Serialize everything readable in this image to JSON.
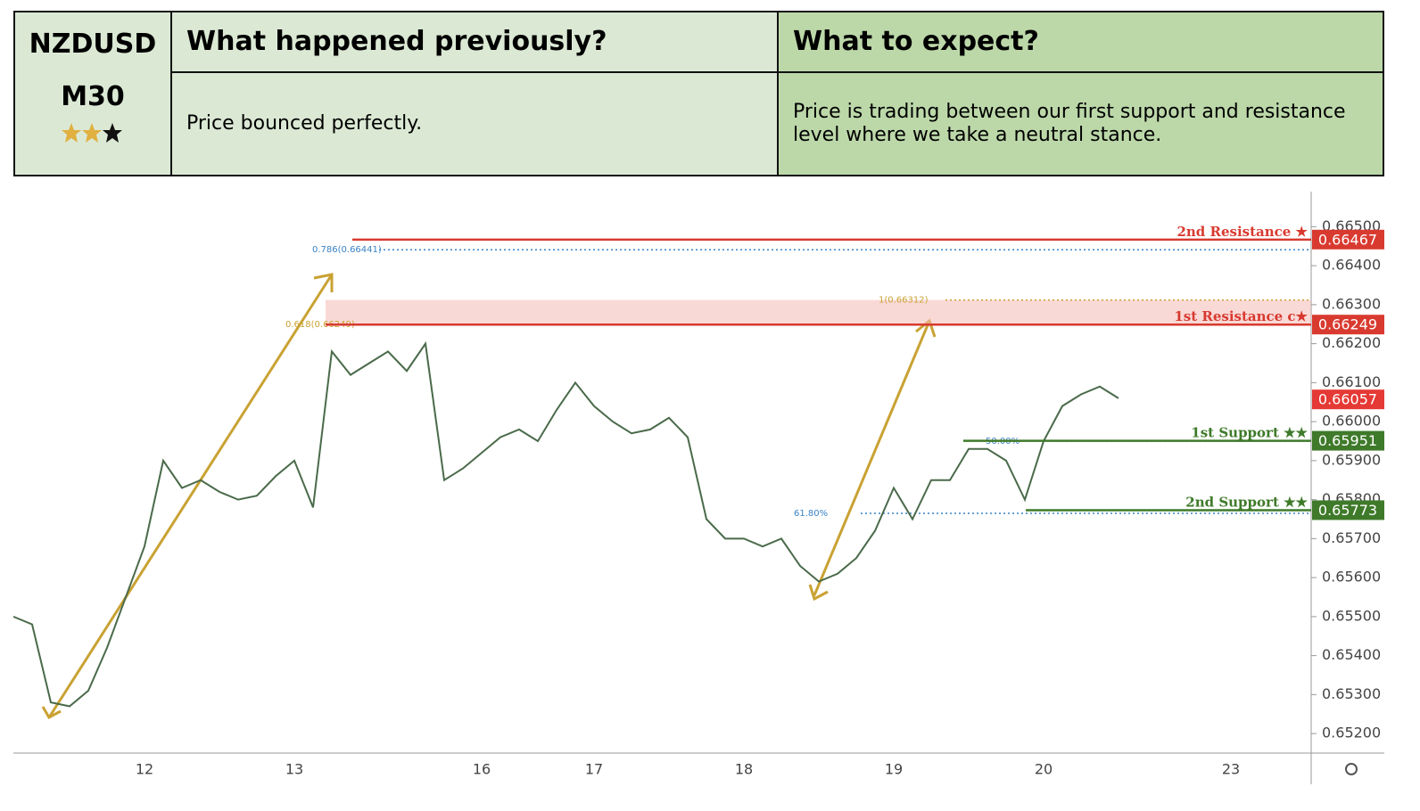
{
  "header": {
    "pair": "NZDUSD",
    "timeframe": "M30",
    "previous_title": "What happened previously?",
    "previous_text": "Price bounced perfectly.",
    "expect_title": "What to expect?",
    "expect_text": "Price is trading between our first support and resistance level where we take a neutral stance."
  },
  "chart_data": {
    "type": "line",
    "color": "#4a6a4a",
    "categories": [
      null,
      null,
      null,
      null,
      null,
      null,
      null,
      "12",
      null,
      null,
      null,
      null,
      null,
      null,
      null,
      "13",
      null,
      null,
      null,
      null,
      null,
      null,
      null,
      null,
      null,
      "16",
      null,
      null,
      null,
      null,
      null,
      "17",
      null,
      null,
      null,
      null,
      null,
      null,
      null,
      "18",
      null,
      null,
      null,
      null,
      null,
      null,
      null,
      "19",
      null,
      null,
      null,
      null,
      null,
      null,
      null,
      "20",
      null,
      null,
      null,
      null,
      null,
      null,
      null,
      null,
      null,
      "23",
      null,
      null,
      null,
      null
    ],
    "values": [
      0.655,
      0.6548,
      0.6528,
      0.6527,
      0.6531,
      0.6542,
      0.6555,
      0.6568,
      0.659,
      0.6583,
      0.6585,
      0.6582,
      0.658,
      0.6581,
      0.6586,
      0.659,
      0.6578,
      0.6618,
      0.6612,
      0.6615,
      0.6618,
      0.6613,
      0.662,
      0.6585,
      0.6588,
      0.6592,
      0.6596,
      0.6598,
      0.6595,
      0.6603,
      0.661,
      0.6604,
      0.66,
      0.6597,
      0.6598,
      0.6601,
      0.6596,
      0.6575,
      0.657,
      0.657,
      0.6568,
      0.657,
      0.6563,
      0.6559,
      0.6561,
      0.6565,
      0.6572,
      0.6583,
      0.6575,
      0.6585,
      0.6585,
      0.6593,
      0.6593,
      0.659,
      0.658,
      0.6595,
      0.6604,
      0.6607,
      0.6609,
      0.6606,
      null,
      null,
      null,
      null,
      null,
      null,
      null,
      null,
      null,
      null
    ],
    "ylim": [
      0.6515,
      0.6659
    ],
    "yticks": [
      {
        "value": 0.652,
        "label": "0.65200"
      },
      {
        "value": 0.653,
        "label": "0.65300"
      },
      {
        "value": 0.654,
        "label": "0.65400"
      },
      {
        "value": 0.655,
        "label": "0.65500"
      },
      {
        "value": 0.656,
        "label": "0.65600"
      },
      {
        "value": 0.657,
        "label": "0.65700"
      },
      {
        "value": 0.658,
        "label": "0.65800"
      },
      {
        "value": 0.659,
        "label": "0.65900"
      },
      {
        "value": 0.66,
        "label": "0.66000"
      },
      {
        "value": 0.661,
        "label": "0.66100"
      },
      {
        "value": 0.662,
        "label": "0.66200"
      },
      {
        "value": 0.663,
        "label": "0.66300"
      },
      {
        "value": 0.664,
        "label": "0.66400"
      },
      {
        "value": 0.665,
        "label": "0.66500"
      }
    ],
    "resistance_zone": [
      0.66249,
      0.66312
    ],
    "levels": [
      {
        "label": "2nd Resistance ★",
        "value": 0.66467,
        "color": "#d93a30"
      },
      {
        "label": "1st Resistance c★",
        "value": 0.66249,
        "color": "#d93a30"
      },
      {
        "label": "1st Support ★★",
        "value": 0.65951,
        "color": "#3f7a2a"
      },
      {
        "label": "2nd Support ★★",
        "value": 0.65773,
        "color": "#3f7a2a"
      }
    ],
    "last_price": 0.66057,
    "fib_levels": [
      {
        "label": "0.786(0.66441)",
        "value": 0.66441,
        "color": "#3a82c4"
      },
      {
        "label": "1(0.66312)",
        "value": 0.66312,
        "color": "#c9a233"
      },
      {
        "label": "0.618(0.66249)",
        "value": 0.66249,
        "color": "#c9a233"
      },
      {
        "label": "50.00%",
        "value": 0.6595,
        "color": "#3a82c4"
      },
      {
        "label": "61.80%",
        "value": 0.65765,
        "color": "#3a82c4"
      }
    ]
  }
}
